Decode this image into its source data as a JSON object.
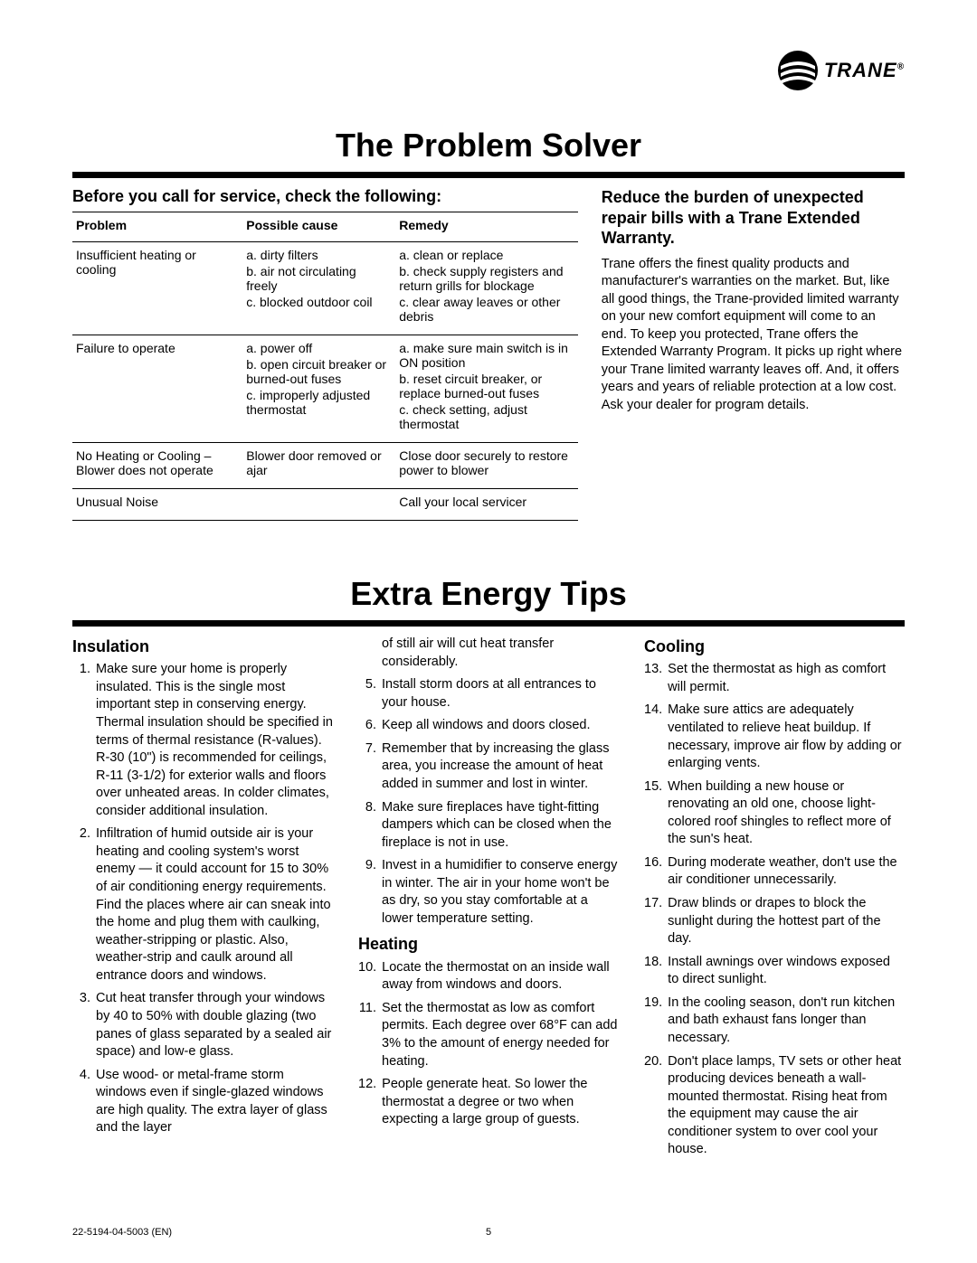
{
  "logo": {
    "brand": "TRANE",
    "registered": "®"
  },
  "section1": {
    "title": "The Problem Solver",
    "subhead": "Before you call for service, check the following:",
    "table": {
      "headers": [
        "Problem",
        "Possible cause",
        "Remedy"
      ],
      "rows": [
        {
          "problem": "Insufficient heating or cooling",
          "cause": [
            "a. dirty filters",
            "b. air not circulating freely",
            "c. blocked outdoor coil"
          ],
          "remedy": [
            "a. clean or replace",
            "b. check supply registers and return grills for blockage",
            "c. clear away leaves or other debris"
          ]
        },
        {
          "problem": "Failure to operate",
          "cause": [
            "a. power off",
            "b. open circuit breaker or burned-out fuses",
            "c. improperly adjusted thermostat"
          ],
          "remedy": [
            "a. make sure main switch is in ON position",
            "b. reset circuit breaker, or replace burned-out fuses",
            "c. check setting, adjust thermostat"
          ]
        },
        {
          "problem": "No Heating or Cooling – Blower does not operate",
          "cause": [
            "Blower door removed or ajar"
          ],
          "remedy": [
            "Close door securely to restore power to blower"
          ]
        },
        {
          "problem": "Unusual Noise",
          "cause": [
            ""
          ],
          "remedy": [
            "Call your local servicer"
          ]
        }
      ]
    },
    "warranty": {
      "head": "Reduce the burden of unexpected repair bills with a Trane Extended Warranty.",
      "body": "Trane offers the finest quality products and manufacturer's warranties on the market. But, like all good things, the Trane-provided limited warranty on your new comfort equipment will come to an end. To keep you protected, Trane offers the Extended Warranty Program. It picks up right where your Trane limited warranty leaves off. And, it offers years and years of reliable protection at a low cost. Ask your dealer for program details."
    }
  },
  "section2": {
    "title": "Extra Energy Tips",
    "continuation": "of still air will cut heat transfer considerably.",
    "groups": [
      {
        "head": "Insulation",
        "start": 1,
        "items": [
          "Make sure your home is properly insulated. This is the single most important step in conserving energy. Thermal insulation should be specified in terms of thermal resistance (R-values). R-30 (10\") is recommended for ceilings, R-11 (3-1/2) for exterior walls and floors over unheated areas. In colder climates, consider additional insulation.",
          "Infiltration of humid outside air is your heating and cooling system's worst enemy — it could account for 15 to 30% of air conditioning energy requirements. Find the places where air can sneak into the home and plug them with caulking, weather-stripping or plastic. Also, weather-strip and caulk around all entrance doors and windows.",
          "Cut heat transfer through your windows by 40 to 50% with double glazing (two panes of glass separated by a sealed air space) and low-e glass.",
          "Use wood- or metal-frame storm windows even if single-glazed windows are high quality. The extra layer of glass and the layer"
        ]
      },
      {
        "head": "",
        "start": 5,
        "items": [
          "Install storm doors at all entrances to your house.",
          "Keep all windows and doors closed.",
          "Remember that by increasing the glass area, you increase the amount of heat added in summer and lost in winter.",
          "Make sure fireplaces have tight-fitting dampers which can be closed when the fireplace is not in use.",
          "Invest in a humidifier to conserve energy in winter. The air in your home won't be as dry, so you stay comfortable at a lower temperature setting."
        ]
      },
      {
        "head": "Heating",
        "start": 10,
        "items": [
          "Locate the thermostat on an inside wall away from windows and doors.",
          "Set the thermostat as low as comfort permits. Each degree over 68°F can add 3% to the amount of energy needed for heating.",
          "People generate heat. So lower the thermostat a degree or two when expecting a large group of guests."
        ]
      },
      {
        "head": "Cooling",
        "start": 13,
        "items": [
          "Set the thermostat as high as comfort will permit.",
          "Make sure attics are adequately ventilated to relieve heat buildup. If necessary, improve air flow by adding or enlarging vents.",
          "When building a new house or renovating an old one, choose light-colored roof shingles to reflect more of the sun's heat.",
          "During moderate weather, don't use the air conditioner unnecessarily.",
          "Draw blinds or drapes to block the sunlight during the hottest part of the day.",
          "Install awnings over windows exposed to direct sunlight.",
          "In the cooling season, don't run kitchen and bath exhaust fans longer than necessary.",
          "Don't place lamps, TV sets or other heat producing devices beneath a wall-mounted thermostat. Rising heat from the equipment may cause the air conditioner system to over cool your house."
        ]
      }
    ]
  },
  "footer": {
    "doc": "22-5194-04-5003 (EN)",
    "page": "5"
  }
}
